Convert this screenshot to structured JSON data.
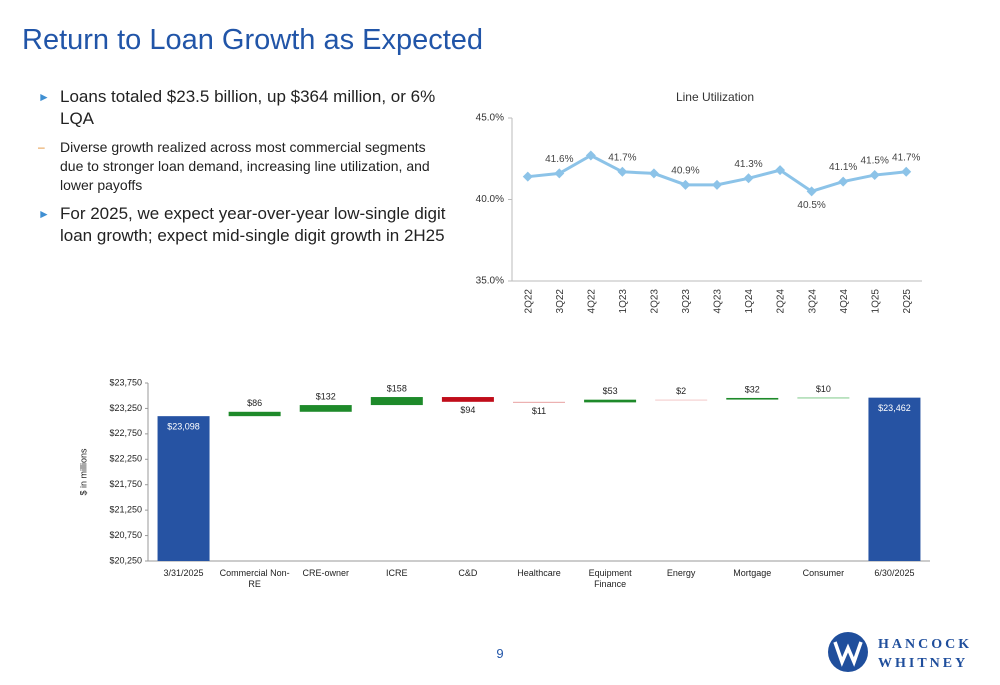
{
  "title": "Return to Loan Growth as Expected",
  "bullets": [
    {
      "text": "Loans totaled $23.5 billion, up $364 million, or 6% LQA",
      "sub": [
        "Diverse growth realized across most commercial segments due to stronger loan demand, increasing line utilization, and lower payoffs"
      ]
    },
    {
      "text": "For 2025, we expect year-over-year low-single digit loan growth; expect mid-single digit growth in 2H25"
    }
  ],
  "chart_data": [
    {
      "type": "line",
      "title": "Line Utilization",
      "categories": [
        "2Q22",
        "3Q22",
        "4Q22",
        "1Q23",
        "2Q23",
        "3Q23",
        "4Q23",
        "1Q24",
        "2Q24",
        "3Q24",
        "4Q24",
        "1Q25",
        "2Q25"
      ],
      "values": [
        41.4,
        41.6,
        42.7,
        41.7,
        41.6,
        40.9,
        40.9,
        41.3,
        41.8,
        40.5,
        41.1,
        41.5,
        41.7
      ],
      "value_labels": [
        null,
        "41.6%",
        null,
        "41.7%",
        null,
        "40.9%",
        null,
        "41.3%",
        null,
        "40.5%",
        "41.1%",
        "41.5%",
        "41.7%"
      ],
      "color": "#8cc3e8",
      "ylim": [
        35,
        45
      ],
      "yticks": [
        {
          "value": 35,
          "label": "35.0%"
        },
        {
          "value": 40,
          "label": "40.0%"
        },
        {
          "value": 45,
          "label": "45.0%"
        }
      ]
    },
    {
      "type": "waterfall",
      "categories": [
        "3/31/2025",
        "Commercial Non-RE",
        "CRE-owner",
        "ICRE",
        "C&D",
        "Healthcare",
        "Equipment Finance",
        "Energy",
        "Mortgage",
        "Consumer",
        "6/30/2025"
      ],
      "values": [
        23098,
        86,
        132,
        158,
        -94,
        -11,
        53,
        2,
        32,
        10,
        23462
      ],
      "value_labels": [
        "$23,098",
        "$86",
        "$132",
        "$158",
        "$94",
        "$11",
        "$53",
        "$2",
        "$32",
        "$10",
        "$23,462"
      ],
      "measures": [
        "total",
        "relative",
        "relative",
        "relative",
        "relative",
        "relative",
        "relative",
        "relative",
        "relative",
        "relative",
        "total"
      ],
      "colors": [
        "#2653a3",
        "#1e8a2a",
        "#1e8a2a",
        "#1e8a2a",
        "#c00d1a",
        "#e8a0a0",
        "#1e8a2a",
        "#f2c8c8",
        "#1e8a2a",
        "#7fc98a",
        "#2653a3"
      ],
      "ylabel": "$ in millions",
      "ylim": [
        20250,
        23750
      ],
      "yticks": [
        {
          "value": 20250,
          "label": "$20,250"
        },
        {
          "value": 20750,
          "label": "$20,750"
        },
        {
          "value": 21250,
          "label": "$21,250"
        },
        {
          "value": 21750,
          "label": "$21,750"
        },
        {
          "value": 22250,
          "label": "$22,250"
        },
        {
          "value": 22750,
          "label": "$22,750"
        },
        {
          "value": 23250,
          "label": "$23,250"
        },
        {
          "value": 23750,
          "label": "$23,750"
        }
      ]
    }
  ],
  "page_number": "9",
  "logo": {
    "line1": "HANCOCK",
    "line2": "WHITNEY"
  }
}
